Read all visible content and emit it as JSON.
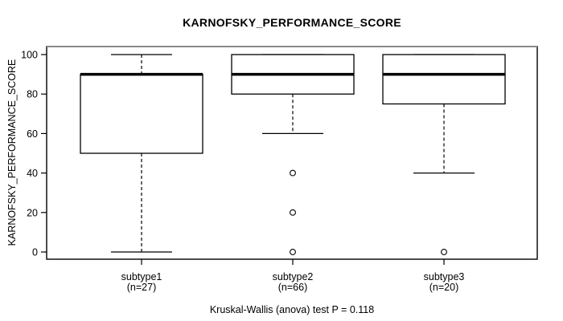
{
  "title": "KARNOFSKY_PERFORMANCE_SCORE",
  "caption": "Kruskal-Wallis (anova) test P = 0.118",
  "y_axis": {
    "label": "KARNOFSKY_PERFORMANCE_SCORE",
    "ticks": [
      0,
      20,
      40,
      60,
      80,
      100
    ]
  },
  "colors": {
    "line": "#000000",
    "border_top": "#8a8a8a",
    "background": "#ffffff",
    "box_fill": "#ffffff",
    "text": "#000000"
  },
  "chart_data": {
    "type": "boxplot",
    "title": "KARNOFSKY_PERFORMANCE_SCORE",
    "ylabel": "KARNOFSKY_PERFORMANCE_SCORE",
    "xlabel": "",
    "ylim": [
      0,
      100
    ],
    "yticks": [
      0,
      20,
      40,
      60,
      80,
      100
    ],
    "grid": false,
    "annotation": "Kruskal-Wallis (anova) test P = 0.118",
    "groups": [
      {
        "label": "subtype1",
        "n": 27,
        "n_label": "(n=27)",
        "whisker_low": 0,
        "q1": 50,
        "median": 90,
        "q3": 90,
        "whisker_high": 100,
        "outliers": []
      },
      {
        "label": "subtype2",
        "n": 66,
        "n_label": "(n=66)",
        "whisker_low": 60,
        "q1": 80,
        "median": 90,
        "q3": 100,
        "whisker_high": 100,
        "outliers": [
          40,
          20,
          0
        ]
      },
      {
        "label": "subtype3",
        "n": 20,
        "n_label": "(n=20)",
        "whisker_low": 40,
        "q1": 75,
        "median": 90,
        "q3": 100,
        "whisker_high": 100,
        "outliers": [
          0
        ]
      }
    ]
  }
}
